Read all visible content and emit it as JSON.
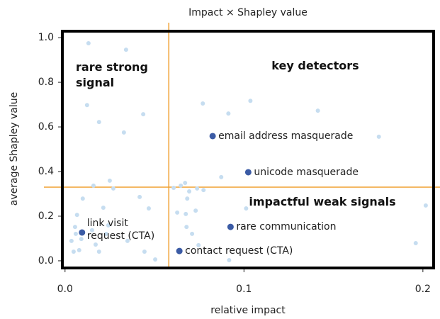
{
  "chart_data": {
    "type": "scatter",
    "title": "Impact × Shapley value",
    "x_label": "relative impact",
    "y_label": "average Shapley value",
    "xlim": [
      -0.0015,
      0.206
    ],
    "ylim": [
      -0.032,
      1.029
    ],
    "xticks": [
      {
        "value": 0,
        "label": "0.0"
      },
      0.1,
      0.2
    ],
    "yticks": [
      {
        "value": 0,
        "label": "0.0"
      },
      0.2,
      0.4,
      0.6,
      0.8,
      {
        "value": 1,
        "label": "1.0"
      }
    ],
    "reference_lines": {
      "x": 0.058,
      "y": 0.33,
      "color": "#f0a030"
    },
    "quadrant_labels": {
      "top_left": "rare strong signal",
      "top_right": "key detectors",
      "bottom_right": "impactful weak signals"
    },
    "series": [
      {
        "color": "#c6ddf0",
        "x": [
          0.0131,
          0.0341,
          0.0123,
          0.019,
          0.0437,
          0.0329,
          0.077,
          0.0913,
          0.1036,
          0.1413,
          0.1754,
          0.025,
          0.027,
          0.0099,
          0.0159,
          0.0417,
          0.0468,
          0.0214,
          0.0067,
          0.0056,
          0.006,
          0.0091,
          0.0036,
          0.0048,
          0.0079,
          0.0171,
          0.023,
          0.0242,
          0.0151,
          0.0349,
          0.0444,
          0.0504,
          0.0607,
          0.0647,
          0.0671,
          0.0694,
          0.0738,
          0.0774,
          0.0627,
          0.0683,
          0.073,
          0.0675,
          0.0679,
          0.071,
          0.0746,
          0.0873,
          0.1012,
          0.0917,
          0.2016,
          0.196,
          0.019
        ],
        "values": [
          0.975,
          0.946,
          0.698,
          0.622,
          0.657,
          0.575,
          0.705,
          0.66,
          0.717,
          0.673,
          0.556,
          0.359,
          0.324,
          0.279,
          0.337,
          0.286,
          0.235,
          0.238,
          0.206,
          0.152,
          0.121,
          0.098,
          0.089,
          0.041,
          0.048,
          0.073,
          0.121,
          0.159,
          0.137,
          0.089,
          0.041,
          0.006,
          0.327,
          0.337,
          0.349,
          0.311,
          0.324,
          0.317,
          0.216,
          0.279,
          0.225,
          0.21,
          0.152,
          0.121,
          0.07,
          0.375,
          0.235,
          0.003,
          0.248,
          0.079,
          0.041
        ]
      },
      {
        "color": "#3b5ba5",
        "x": [
          0.0825,
          0.1024,
          0.0925,
          0.0639,
          0.0095
        ],
        "values": [
          0.559,
          0.397,
          0.152,
          0.044,
          0.127
        ],
        "point_labels": [
          "email address masquerade",
          "unicode masquerade",
          "rare communication",
          "contact request (CTA)",
          "link visit request (CTA)"
        ]
      }
    ]
  }
}
